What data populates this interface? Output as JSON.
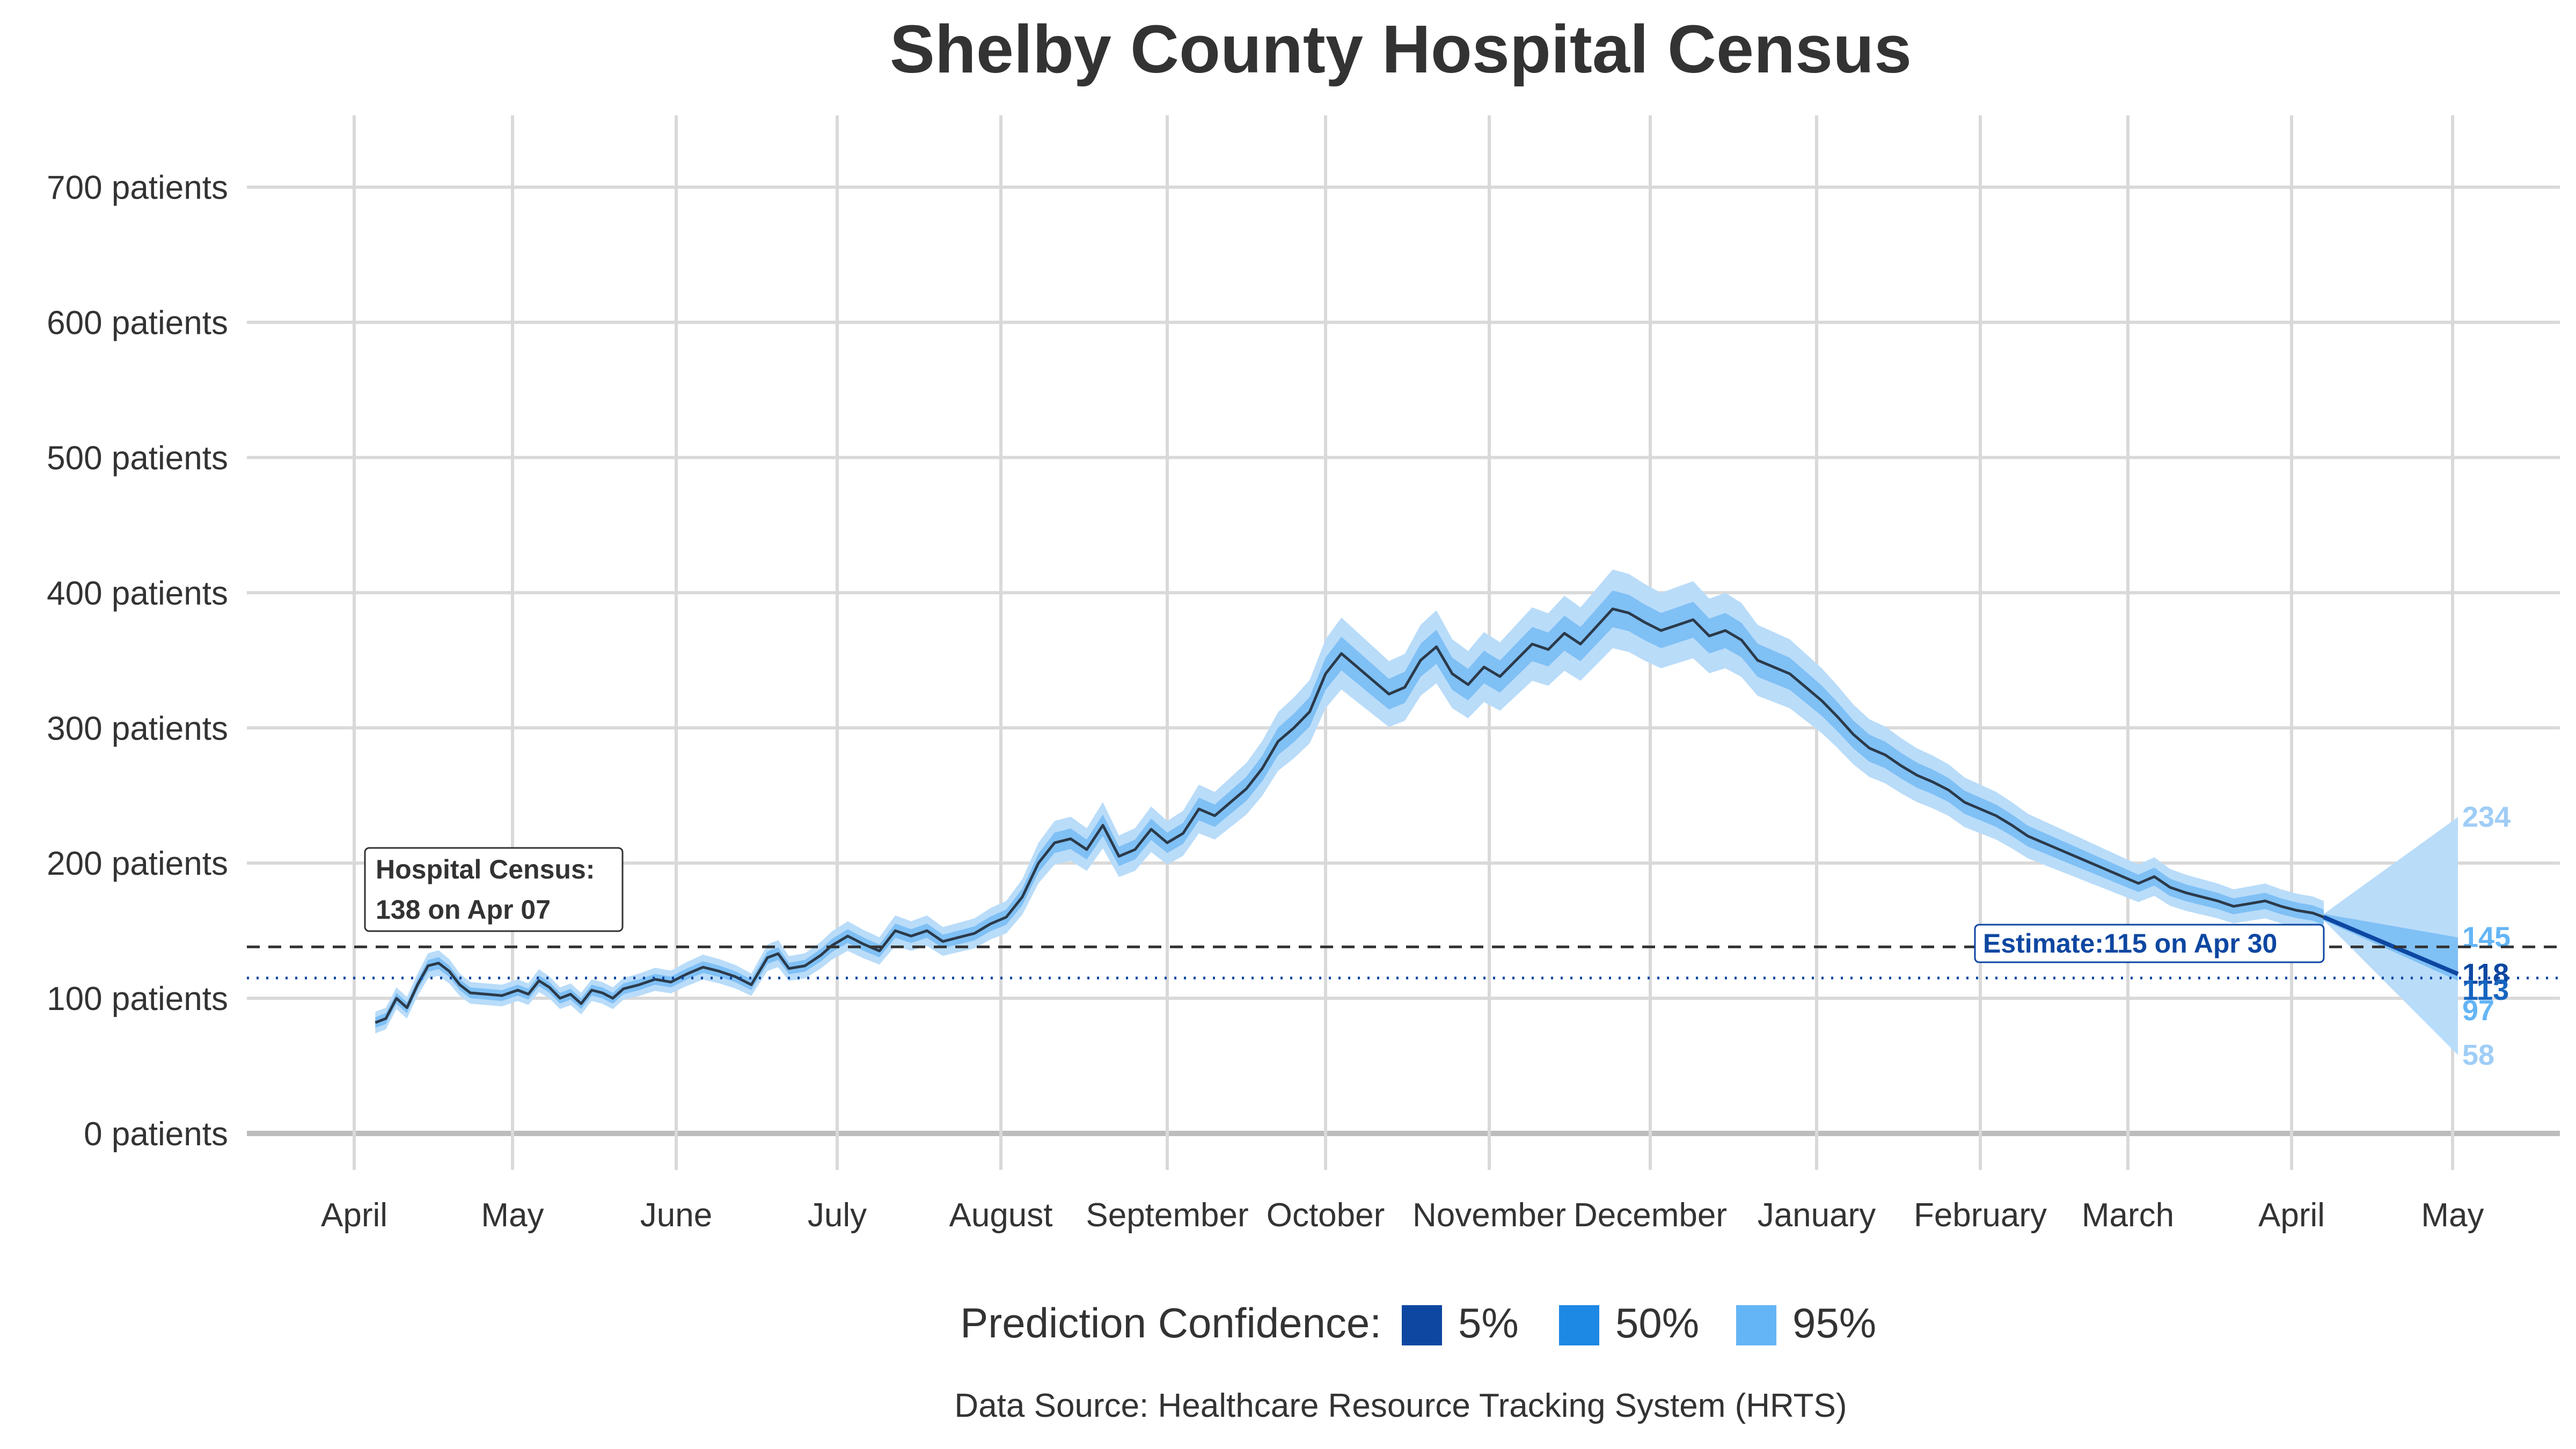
{
  "chart_data": {
    "type": "line",
    "title": "Shelby County Hospital Census",
    "y_unit": "patients",
    "ylim": [
      -15,
      760
    ],
    "y_ticks": [
      {
        "value": 0,
        "label": "0 patients"
      },
      {
        "value": 100,
        "label": "100 patients"
      },
      {
        "value": 200,
        "label": "200 patients"
      },
      {
        "value": 300,
        "label": "300 patients"
      },
      {
        "value": 400,
        "label": "400 patients"
      },
      {
        "value": 500,
        "label": "500 patients"
      },
      {
        "value": 600,
        "label": "600 patients"
      },
      {
        "value": 700,
        "label": "700 patients"
      }
    ],
    "x_ticks": [
      "April",
      "May",
      "June",
      "July",
      "August",
      "September",
      "October",
      "November",
      "December",
      "January",
      "February",
      "March",
      "April",
      "May"
    ],
    "grid": true,
    "observed": {
      "start_day": 4,
      "end_day": 371,
      "points": [
        [
          4,
          82
        ],
        [
          6,
          85
        ],
        [
          8,
          100
        ],
        [
          10,
          93
        ],
        [
          12,
          110
        ],
        [
          14,
          124
        ],
        [
          16,
          126
        ],
        [
          18,
          120
        ],
        [
          20,
          110
        ],
        [
          22,
          104
        ],
        [
          25,
          103
        ],
        [
          28,
          102
        ],
        [
          31,
          106
        ],
        [
          33,
          103
        ],
        [
          35,
          113
        ],
        [
          37,
          108
        ],
        [
          39,
          100
        ],
        [
          41,
          103
        ],
        [
          43,
          96
        ],
        [
          45,
          106
        ],
        [
          47,
          104
        ],
        [
          49,
          100
        ],
        [
          51,
          107
        ],
        [
          54,
          110
        ],
        [
          57,
          114
        ],
        [
          60,
          112
        ],
        [
          63,
          118
        ],
        [
          66,
          123
        ],
        [
          69,
          120
        ],
        [
          72,
          116
        ],
        [
          75,
          110
        ],
        [
          78,
          130
        ],
        [
          80,
          133
        ],
        [
          82,
          122
        ],
        [
          85,
          124
        ],
        [
          88,
          132
        ],
        [
          90,
          139
        ],
        [
          93,
          146
        ],
        [
          96,
          140
        ],
        [
          99,
          135
        ],
        [
          102,
          150
        ],
        [
          105,
          146
        ],
        [
          108,
          150
        ],
        [
          111,
          142
        ],
        [
          114,
          145
        ],
        [
          117,
          148
        ],
        [
          120,
          155
        ],
        [
          123,
          160
        ],
        [
          126,
          175
        ],
        [
          129,
          200
        ],
        [
          132,
          215
        ],
        [
          135,
          218
        ],
        [
          138,
          210
        ],
        [
          141,
          228
        ],
        [
          144,
          205
        ],
        [
          147,
          210
        ],
        [
          150,
          225
        ],
        [
          153,
          215
        ],
        [
          156,
          222
        ],
        [
          159,
          240
        ],
        [
          162,
          235
        ],
        [
          165,
          245
        ],
        [
          168,
          255
        ],
        [
          171,
          270
        ],
        [
          174,
          290
        ],
        [
          177,
          300
        ],
        [
          180,
          312
        ],
        [
          183,
          340
        ],
        [
          186,
          355
        ],
        [
          189,
          345
        ],
        [
          192,
          335
        ],
        [
          195,
          325
        ],
        [
          198,
          330
        ],
        [
          201,
          350
        ],
        [
          204,
          360
        ],
        [
          207,
          340
        ],
        [
          210,
          332
        ],
        [
          213,
          345
        ],
        [
          216,
          338
        ],
        [
          219,
          350
        ],
        [
          222,
          362
        ],
        [
          225,
          358
        ],
        [
          228,
          370
        ],
        [
          231,
          362
        ],
        [
          234,
          375
        ],
        [
          237,
          388
        ],
        [
          240,
          385
        ],
        [
          243,
          378
        ],
        [
          246,
          372
        ],
        [
          249,
          376
        ],
        [
          252,
          380
        ],
        [
          255,
          368
        ],
        [
          258,
          372
        ],
        [
          261,
          365
        ],
        [
          264,
          350
        ],
        [
          267,
          345
        ],
        [
          270,
          340
        ],
        [
          273,
          330
        ],
        [
          276,
          320
        ],
        [
          279,
          308
        ],
        [
          282,
          295
        ],
        [
          285,
          285
        ],
        [
          288,
          280
        ],
        [
          291,
          272
        ],
        [
          294,
          265
        ],
        [
          297,
          260
        ],
        [
          300,
          254
        ],
        [
          303,
          245
        ],
        [
          306,
          240
        ],
        [
          309,
          235
        ],
        [
          312,
          228
        ],
        [
          315,
          220
        ],
        [
          318,
          215
        ],
        [
          321,
          210
        ],
        [
          324,
          205
        ],
        [
          327,
          200
        ],
        [
          330,
          195
        ],
        [
          333,
          190
        ],
        [
          336,
          185
        ],
        [
          339,
          190
        ],
        [
          342,
          182
        ],
        [
          345,
          178
        ],
        [
          348,
          175
        ],
        [
          351,
          172
        ],
        [
          354,
          168
        ],
        [
          357,
          170
        ],
        [
          360,
          172
        ],
        [
          363,
          168
        ],
        [
          366,
          165
        ],
        [
          369,
          163
        ],
        [
          371,
          160
        ]
      ]
    },
    "forecast": {
      "start_day": 371,
      "end_day": 396,
      "median_end": 118,
      "band50_end": [
        113,
        145
      ],
      "band95_end": [
        58,
        234
      ],
      "end_labels": {
        "upper95": "234",
        "upper50": "145",
        "median": "118",
        "lower50": "113",
        "lower50b": "97",
        "lower95": "58"
      }
    },
    "colors": {
      "line": "#2b3a4a",
      "band95": "#b9dcf9",
      "band50": "#7fc0f5",
      "forecast_line": "#0d47a1",
      "estimate_line": "#0d47a1",
      "census_line": "#333333",
      "grid": "#d9d9d9"
    },
    "census_annotation": {
      "line1": "Hospital Census:",
      "line2": "138 on Apr 07",
      "value": 138
    },
    "estimate_annotation": {
      "text": "Estimate:115 on Apr 30",
      "value": 115
    },
    "legend": {
      "title": "Prediction Confidence:",
      "items": [
        {
          "label": "5%",
          "color": "#0d47a1"
        },
        {
          "label": "50%",
          "color": "#1e88e5"
        },
        {
          "label": "95%",
          "color": "#64b5f6"
        }
      ]
    },
    "caption": "Data Source: Healthcare Resource Tracking System (HRTS)"
  }
}
